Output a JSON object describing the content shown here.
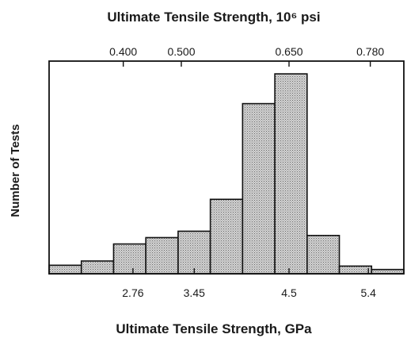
{
  "chart_data": {
    "type": "bar",
    "title": "Ultimate Tensile Strength, 10⁶ psi",
    "xlabel": "Ultimate Tensile Strength, GPa",
    "ylabel": "Number of Tests",
    "bins_gpa": [
      {
        "start": 1.7,
        "end": 2.2,
        "count": 2
      },
      {
        "start": 2.2,
        "end": 2.7,
        "count": 3
      },
      {
        "start": 2.7,
        "end": 3.2,
        "count": 7
      },
      {
        "start": 3.2,
        "end": 3.7,
        "count": 8.5
      },
      {
        "start": 3.7,
        "end": 4.2,
        "count": 10
      },
      {
        "start": 4.2,
        "end": 4.7,
        "count": 17.5
      },
      {
        "start": 4.7,
        "end": 5.2,
        "count": 40
      },
      {
        "start": 5.2,
        "end": 5.7,
        "count": 47
      },
      {
        "start": 5.7,
        "end": 6.2,
        "count": 9
      },
      {
        "start": 6.2,
        "end": 6.7,
        "count": 1.8
      },
      {
        "start": 6.7,
        "end": 7.2,
        "count": 1
      }
    ],
    "x_bottom": {
      "unit": "GPa",
      "range": [
        1.7,
        7.2
      ],
      "ticks": [
        {
          "label": "2.76",
          "value": 3.0
        },
        {
          "label": "3.45",
          "value": 3.95
        },
        {
          "label": "4.5",
          "value": 5.42
        },
        {
          "label": "5.4",
          "value": 6.65
        }
      ]
    },
    "x_top": {
      "unit": "10⁶ psi",
      "ticks": [
        {
          "label": "0.400",
          "value": 2.85
        },
        {
          "label": "0.500",
          "value": 3.75
        },
        {
          "label": "0.650",
          "value": 5.42
        },
        {
          "label": "0.780",
          "value": 6.68
        }
      ]
    },
    "y_range": [
      0,
      50
    ],
    "grid": false,
    "legend": "none",
    "fill_pattern": "stippled gray"
  }
}
